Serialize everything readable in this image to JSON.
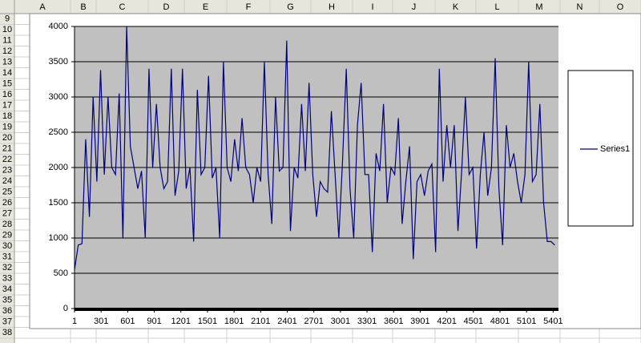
{
  "sheet": {
    "columns": [
      "A",
      "B",
      "C",
      "D",
      "E",
      "F",
      "G",
      "H",
      "I",
      "J",
      "K",
      "L",
      "M",
      "N",
      "O"
    ],
    "rows": [
      "9",
      "10",
      "11",
      "12",
      "13",
      "14",
      "15",
      "16",
      "17",
      "18",
      "19",
      "20",
      "21",
      "22",
      "23",
      "24",
      "25",
      "26",
      "27",
      "28",
      "29",
      "30",
      "31",
      "32",
      "33",
      "34",
      "35",
      "36",
      "37",
      "38"
    ]
  },
  "chart_data": {
    "type": "line",
    "x": [
      1,
      43,
      85,
      127,
      169,
      211,
      253,
      295,
      337,
      379,
      421,
      463,
      505,
      547,
      589,
      631,
      673,
      715,
      757,
      799,
      841,
      883,
      925,
      967,
      1009,
      1051,
      1093,
      1135,
      1177,
      1219,
      1261,
      1303,
      1345,
      1387,
      1429,
      1471,
      1513,
      1555,
      1597,
      1639,
      1681,
      1723,
      1765,
      1807,
      1849,
      1891,
      1933,
      1975,
      2017,
      2059,
      2101,
      2143,
      2185,
      2227,
      2269,
      2311,
      2353,
      2395,
      2437,
      2479,
      2521,
      2563,
      2605,
      2647,
      2689,
      2731,
      2773,
      2815,
      2857,
      2899,
      2941,
      2983,
      3025,
      3067,
      3109,
      3151,
      3193,
      3235,
      3277,
      3319,
      3361,
      3403,
      3445,
      3487,
      3529,
      3571,
      3613,
      3655,
      3697,
      3739,
      3781,
      3823,
      3865,
      3907,
      3949,
      3991,
      4033,
      4075,
      4117,
      4159,
      4201,
      4243,
      4285,
      4327,
      4369,
      4411,
      4453,
      4495,
      4537,
      4579,
      4621,
      4663,
      4705,
      4747,
      4789,
      4831,
      4873,
      4915,
      4957,
      4999,
      5041,
      5083,
      5125,
      5167,
      5209,
      5251,
      5293,
      5335,
      5377,
      5419
    ],
    "series": [
      {
        "name": "Series1",
        "color": "#000080",
        "values": [
          550,
          900,
          920,
          2400,
          1300,
          3000,
          1800,
          3380,
          1900,
          3000,
          2000,
          1900,
          3050,
          1000,
          4000,
          2300,
          2000,
          1700,
          1950,
          1000,
          3400,
          2000,
          2900,
          2000,
          1700,
          1800,
          3400,
          1600,
          1950,
          3400,
          1700,
          2000,
          950,
          3100,
          1900,
          2000,
          3300,
          1850,
          2000,
          1000,
          3500,
          2000,
          1800,
          2400,
          1950,
          2700,
          2000,
          1900,
          1500,
          2000,
          1800,
          3500,
          1900,
          1200,
          3000,
          1950,
          2000,
          3800,
          1100,
          2000,
          1850,
          2900,
          1950,
          3200,
          1900,
          1300,
          1800,
          1700,
          1650,
          2800,
          1900,
          1000,
          2100,
          3400,
          1700,
          1000,
          2600,
          3200,
          1900,
          1900,
          800,
          2200,
          1950,
          2900,
          1500,
          2000,
          1900,
          2700,
          1200,
          1800,
          2300,
          700,
          1800,
          1900,
          1600,
          1950,
          2050,
          800,
          3400,
          1800,
          2600,
          2000,
          2600,
          1100,
          1950,
          3000,
          1900,
          2000,
          850,
          1900,
          2500,
          1600,
          2000,
          3550,
          1700,
          900,
          2600,
          2000,
          2200,
          1800,
          1500,
          1900,
          3500,
          1800,
          1900,
          2900,
          1500,
          950,
          950,
          900
        ]
      }
    ],
    "xlim": [
      1,
      5461
    ],
    "xticks": [
      1,
      301,
      601,
      901,
      1201,
      1501,
      1801,
      2101,
      2401,
      2701,
      3001,
      3301,
      3601,
      3901,
      4201,
      4501,
      4801,
      5101,
      5401
    ],
    "ylim": [
      0,
      4000
    ],
    "yticks": [
      0,
      500,
      1000,
      1500,
      2000,
      2500,
      3000,
      3500,
      4000
    ],
    "grid": true,
    "plot_background": "#c0c0c0",
    "legend": "right"
  }
}
